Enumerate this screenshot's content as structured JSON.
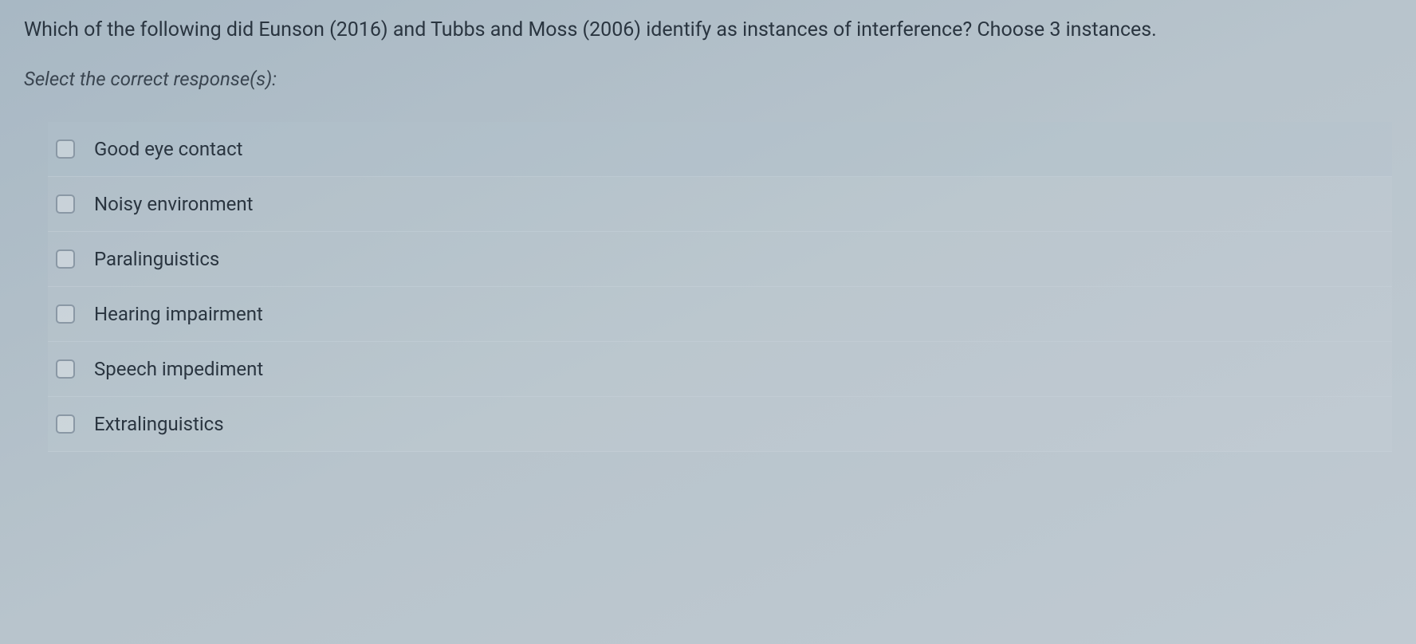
{
  "question": {
    "text": "Which of the following did Eunson (2016) and Tubbs and Moss (2006) identify as instances of interference? Choose 3 instances.",
    "instruction": "Select the correct response(s):"
  },
  "options": [
    {
      "label": "Good eye contact"
    },
    {
      "label": "Noisy environment"
    },
    {
      "label": "Paralinguistics"
    },
    {
      "label": "Hearing impairment"
    },
    {
      "label": "Speech impediment"
    },
    {
      "label": "Extralinguistics"
    }
  ],
  "styling": {
    "background_gradient_start": "#a8b8c4",
    "background_gradient_end": "#c0cad2",
    "text_color": "#2a3540",
    "checkbox_border": "#8a98a5",
    "font_size_question": 25,
    "font_size_option": 24
  }
}
